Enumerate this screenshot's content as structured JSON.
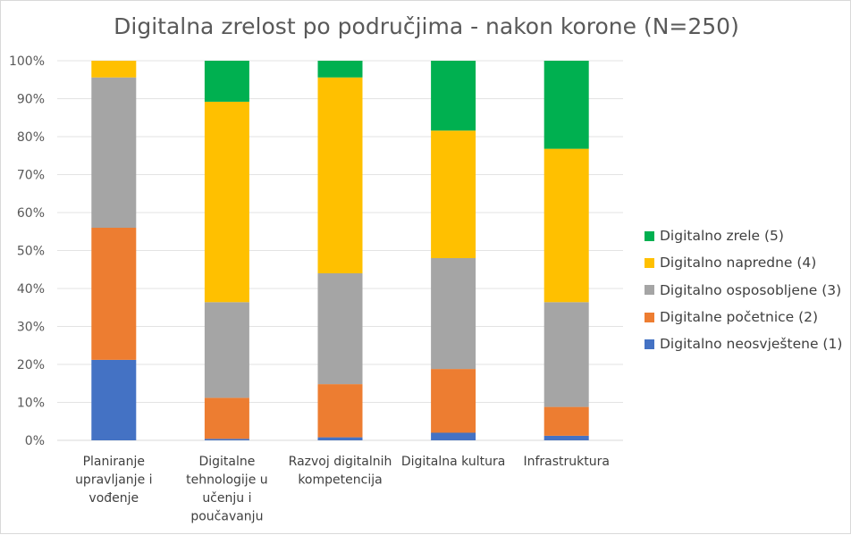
{
  "chart_data": {
    "type": "bar",
    "stacked": true,
    "title": "Digitalna zrelost po područjima - nakon korone (N=250)",
    "xlabel": "",
    "ylabel": "",
    "ylim": [
      0,
      100
    ],
    "y_ticks": [
      "0%",
      "10%",
      "20%",
      "30%",
      "40%",
      "50%",
      "60%",
      "70%",
      "80%",
      "90%",
      "100%"
    ],
    "grid": true,
    "legend_position": "right",
    "categories": [
      [
        "Planiranje",
        "upravljanje i",
        "vođenje"
      ],
      [
        "Digitalne",
        "tehnologije u",
        "učenju i",
        "poučavanju"
      ],
      [
        "Razvoj digitalnih",
        "kompetencija"
      ],
      [
        "Digitalna kultura"
      ],
      [
        "Infrastruktura"
      ]
    ],
    "series": [
      {
        "name": "Digitalno neosvještene (1)",
        "color": "#4472c4",
        "values": [
          21.2,
          0.4,
          0.8,
          2.0,
          1.2
        ]
      },
      {
        "name": "Digitalne početnice (2)",
        "color": "#ed7d31",
        "values": [
          34.8,
          10.8,
          14.0,
          16.8,
          7.6
        ]
      },
      {
        "name": "Digitalno osposobljene (3)",
        "color": "#a5a5a5",
        "values": [
          39.6,
          25.2,
          29.2,
          29.2,
          27.6
        ]
      },
      {
        "name": "Digitalno napredne (4)",
        "color": "#ffc000",
        "values": [
          4.4,
          52.8,
          51.6,
          33.6,
          40.4
        ]
      },
      {
        "name": "Digitalno zrele (5)",
        "color": "#00b050",
        "values": [
          0.0,
          10.8,
          4.4,
          18.4,
          23.2
        ]
      }
    ]
  }
}
